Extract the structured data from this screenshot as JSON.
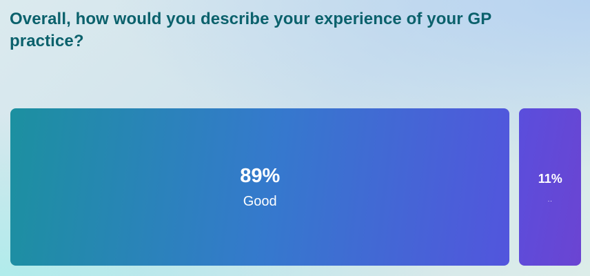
{
  "title": "Overall, how would you describe your experience of your GP practice?",
  "colors": {
    "title_text": "#0b616c",
    "bar_label_text": "#ffffff",
    "bar_good_gradient_start": "#1c90a0",
    "bar_good_gradient_mid": "#3579cd",
    "bar_good_gradient_end": "#5255dd",
    "bar_other_gradient_start": "#5a4edc",
    "bar_other_gradient_end": "#6b44d2",
    "background_top_right": "#b6d2f1",
    "background_bottom_left": "#afeceb",
    "background_base": "#cfe2ec"
  },
  "chart_data": {
    "type": "bar",
    "subtype": "100-percent-stacked-horizontal",
    "title": "Overall, how would you describe your experience of your GP practice?",
    "xlabel": "",
    "ylabel": "",
    "axes_visible": false,
    "grid": false,
    "legend": "none",
    "categories": [
      "Good",
      ".."
    ],
    "values": [
      89,
      11
    ],
    "bars": [
      {
        "category_label": "Good",
        "value_label": "89%",
        "percent": 89
      },
      {
        "category_label": "..",
        "value_label": "11%",
        "percent": 11
      }
    ]
  }
}
